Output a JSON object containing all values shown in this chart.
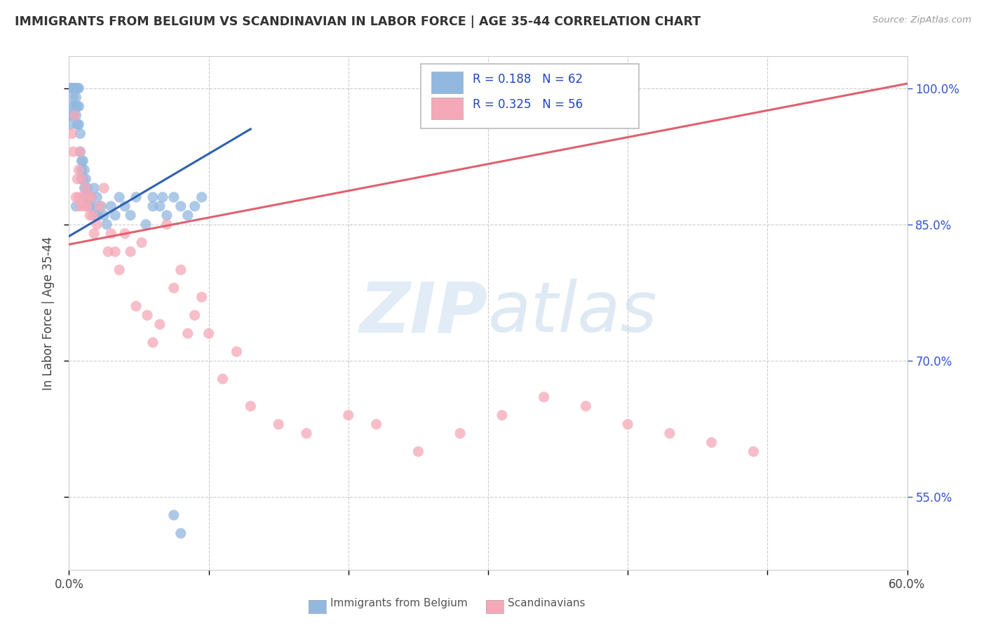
{
  "title": "IMMIGRANTS FROM BELGIUM VS SCANDINAVIAN IN LABOR FORCE | AGE 35-44 CORRELATION CHART",
  "source": "Source: ZipAtlas.com",
  "ylabel": "In Labor Force | Age 35-44",
  "xmin": 0.0,
  "xmax": 0.6,
  "ymin": 0.47,
  "ymax": 1.035,
  "xticks": [
    0.0,
    0.1,
    0.2,
    0.3,
    0.4,
    0.5,
    0.6
  ],
  "ytick_labels_right": [
    "100.0%",
    "85.0%",
    "70.0%",
    "55.0%"
  ],
  "ytick_positions_right": [
    1.0,
    0.85,
    0.7,
    0.55
  ],
  "legend_r_blue": "0.188",
  "legend_n_blue": "62",
  "legend_r_pink": "0.325",
  "legend_n_pink": "56",
  "blue_color": "#92b8e0",
  "pink_color": "#f5a8b8",
  "trend_blue_color": "#3060b0",
  "trend_pink_color": "#e06070",
  "blue_scatter_x": [
    0.001,
    0.001,
    0.001,
    0.002,
    0.002,
    0.003,
    0.003,
    0.003,
    0.004,
    0.004,
    0.005,
    0.005,
    0.005,
    0.006,
    0.006,
    0.006,
    0.007,
    0.007,
    0.007,
    0.008,
    0.008,
    0.009,
    0.009,
    0.009,
    0.01,
    0.01,
    0.011,
    0.011,
    0.012,
    0.012,
    0.013,
    0.014,
    0.015,
    0.016,
    0.017,
    0.018,
    0.019,
    0.02,
    0.021,
    0.023,
    0.025,
    0.027,
    0.03,
    0.033,
    0.036,
    0.04,
    0.044,
    0.048,
    0.055,
    0.06,
    0.067,
    0.075,
    0.08,
    0.06,
    0.065,
    0.07,
    0.075,
    0.08,
    0.085,
    0.09,
    0.095,
    0.005
  ],
  "blue_scatter_y": [
    1.0,
    0.98,
    0.96,
    1.0,
    0.97,
    1.0,
    0.99,
    0.97,
    1.0,
    0.98,
    1.0,
    0.99,
    0.97,
    1.0,
    0.98,
    0.96,
    1.0,
    0.98,
    0.96,
    0.95,
    0.93,
    0.92,
    0.91,
    0.9,
    0.92,
    0.9,
    0.91,
    0.89,
    0.9,
    0.88,
    0.89,
    0.88,
    0.87,
    0.88,
    0.87,
    0.89,
    0.86,
    0.88,
    0.86,
    0.87,
    0.86,
    0.85,
    0.87,
    0.86,
    0.88,
    0.87,
    0.86,
    0.88,
    0.85,
    0.87,
    0.88,
    0.53,
    0.51,
    0.88,
    0.87,
    0.86,
    0.88,
    0.87,
    0.86,
    0.87,
    0.88,
    0.87
  ],
  "pink_scatter_x": [
    0.002,
    0.003,
    0.004,
    0.005,
    0.006,
    0.007,
    0.007,
    0.008,
    0.008,
    0.009,
    0.01,
    0.011,
    0.012,
    0.013,
    0.014,
    0.015,
    0.016,
    0.017,
    0.018,
    0.02,
    0.022,
    0.025,
    0.028,
    0.03,
    0.033,
    0.036,
    0.04,
    0.044,
    0.048,
    0.052,
    0.056,
    0.06,
    0.065,
    0.07,
    0.075,
    0.08,
    0.085,
    0.09,
    0.095,
    0.1,
    0.11,
    0.12,
    0.13,
    0.15,
    0.17,
    0.2,
    0.22,
    0.25,
    0.28,
    0.31,
    0.34,
    0.37,
    0.4,
    0.43,
    0.46,
    0.49
  ],
  "pink_scatter_y": [
    0.95,
    0.93,
    0.97,
    0.88,
    0.9,
    0.91,
    0.88,
    0.87,
    0.93,
    0.9,
    0.88,
    0.87,
    0.89,
    0.87,
    0.88,
    0.86,
    0.88,
    0.86,
    0.84,
    0.85,
    0.87,
    0.89,
    0.82,
    0.84,
    0.82,
    0.8,
    0.84,
    0.82,
    0.76,
    0.83,
    0.75,
    0.72,
    0.74,
    0.85,
    0.78,
    0.8,
    0.73,
    0.75,
    0.77,
    0.73,
    0.68,
    0.71,
    0.65,
    0.63,
    0.62,
    0.64,
    0.63,
    0.6,
    0.62,
    0.64,
    0.66,
    0.65,
    0.63,
    0.62,
    0.61,
    0.6
  ],
  "blue_trendline_x": [
    0.0,
    0.13
  ],
  "blue_trendline_y": [
    0.837,
    0.955
  ],
  "pink_trendline_x": [
    0.0,
    0.6
  ],
  "pink_trendline_y": [
    0.828,
    1.005
  ],
  "grid_color": "#cccccc",
  "grid_style": "--",
  "background_color": "#ffffff"
}
